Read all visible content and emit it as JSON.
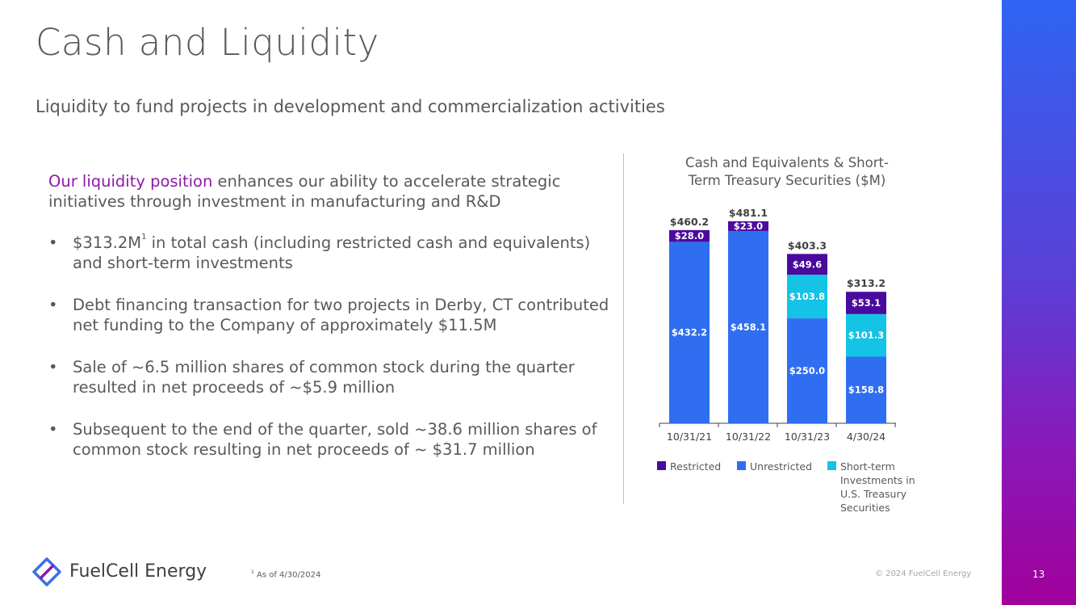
{
  "slide": {
    "title": "Cash and Liquidity",
    "subtitle": "Liquidity to fund projects in development and commercialization activities",
    "intro_accent": "Our liquidity position",
    "intro_rest": " enhances our ability to accelerate strategic initiatives through investment in manufacturing and R&D",
    "bullets": [
      {
        "pre": "$313.2M",
        "sup": "1",
        "post": "  in total cash (including restricted cash and equivalents) and short-term investments"
      },
      {
        "text": "Debt financing transaction for two projects in Derby, CT contributed net funding to the Company of approximately $11.5M"
      },
      {
        "text": "Sale of ~6.5 million shares of common stock during the quarter resulted in net proceeds of ~$5.9 million"
      },
      {
        "text": "Subsequent to the end of the quarter, sold ~38.6 million shares of common stock resulting in net proceeds of ~ $31.7 million"
      }
    ],
    "footnote_sup": "1",
    "footnote_text": " As of 4/30/2024",
    "copyright": "© 2024 FuelCell Energy",
    "page_number": "13",
    "brand": "FuelCell Energy"
  },
  "colors": {
    "restricted": "#4b0a9e",
    "unrestricted": "#2f6ef0",
    "short_term": "#14c3e6",
    "accent_text": "#8e1aa8"
  },
  "chart_data": {
    "type": "bar",
    "stacked": true,
    "title": "Cash and Equivalents & Short-Term Treasury Securities ($M)",
    "categories": [
      "10/31/21",
      "10/31/22",
      "10/31/23",
      "4/30/24"
    ],
    "series": [
      {
        "name": "Unrestricted",
        "key": "unrestricted",
        "values": [
          432.2,
          458.1,
          250.0,
          158.8
        ],
        "labels": [
          "$432.2",
          "$458.1",
          "$250.0",
          "$158.8"
        ]
      },
      {
        "name": "Short-term Investments in U.S. Treasury Securities",
        "key": "short_term",
        "values": [
          0,
          0,
          103.8,
          101.3
        ],
        "labels": [
          "",
          "",
          "$103.8",
          "$101.3"
        ]
      },
      {
        "name": "Restricted",
        "key": "restricted",
        "values": [
          28.0,
          23.0,
          49.6,
          53.1
        ],
        "labels": [
          "$28.0",
          "$23.0",
          "$49.6",
          "$53.1"
        ]
      }
    ],
    "totals": [
      460.2,
      481.1,
      403.3,
      313.2
    ],
    "total_labels": [
      "$460.2",
      "$481.1",
      "$403.3",
      "$313.2"
    ],
    "legend_order": [
      "Restricted",
      "Unrestricted",
      "Short-term Investments in U.S. Treasury Securities"
    ],
    "legend_position": "bottom",
    "ylim": [
      0,
      481.1
    ],
    "grid": false
  }
}
